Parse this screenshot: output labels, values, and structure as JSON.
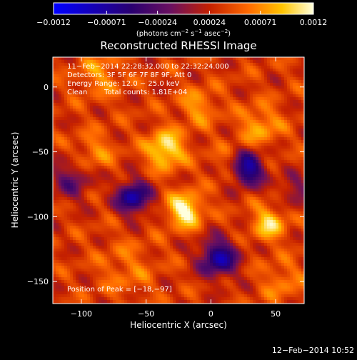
{
  "chart_data": {
    "type": "heatmap",
    "title": "Reconstructed RHESSI Image",
    "xlabel": "Heliocentric X (arcsec)",
    "ylabel": "Heliocentric Y (arcsec)",
    "xlim": [
      -122,
      72
    ],
    "ylim": [
      -167,
      23
    ],
    "x_ticks": [
      -100,
      -50,
      0,
      50
    ],
    "x_tick_labels": [
      "−100",
      "−50",
      "0",
      "50"
    ],
    "y_ticks": [
      0,
      -50,
      -100,
      -150
    ],
    "y_tick_labels": [
      "0",
      "−50",
      "−100",
      "−150"
    ],
    "colorbar": {
      "range": [
        -0.0012,
        0.0012
      ],
      "ticks": [
        -0.0012,
        -0.00071,
        -0.00024,
        0.00024,
        0.00071,
        0.0012
      ],
      "tick_labels": [
        "−0.0012",
        "−0.00071",
        "−0.00024",
        "0.00024",
        "0.00071",
        "0.0012"
      ],
      "unit_label_parts": [
        "(photons cm",
        "−2",
        " s",
        "−1",
        " asec",
        "−2",
        ")"
      ]
    },
    "info_lines": [
      "11−Feb−2014 22:28:32.000 to 22:32:24.000",
      "Detectors: 3F 5F 6F 7F 8F 9F, Att 0",
      "Energy Range: 12.0 − 25.0 keV"
    ],
    "info_clean": "Clean",
    "info_counts": "Total counts: 1.81E+04",
    "peak_label": "Position of Peak = [−18,−97]",
    "timestamp": "12−Feb−2014 10:52",
    "background_level": 0.00035,
    "sources": [
      {
        "x": -20,
        "y": -95,
        "amplitude": 0.0009,
        "sigma": 9
      },
      {
        "x": -35,
        "y": -48,
        "amplitude": 0.0008,
        "sigma": 10
      },
      {
        "x": 45,
        "y": -105,
        "amplitude": 0.00065,
        "sigma": 9
      },
      {
        "x": -10,
        "y": -15,
        "amplitude": 0.0004,
        "sigma": 10
      },
      {
        "x": 38,
        "y": -30,
        "amplitude": 0.00045,
        "sigma": 11
      },
      {
        "x": -90,
        "y": -50,
        "amplitude": 0.00035,
        "sigma": 10
      },
      {
        "x": -85,
        "y": 10,
        "amplitude": 0.00035,
        "sigma": 12
      },
      {
        "x": -65,
        "y": -140,
        "amplitude": 0.00025,
        "sigma": 15
      },
      {
        "x": 55,
        "y": -150,
        "amplitude": 0.0003,
        "sigma": 11
      },
      {
        "x": 15,
        "y": -60,
        "amplitude": 0.00025,
        "sigma": 10
      },
      {
        "x": -60,
        "y": -85,
        "amplitude": -0.0011,
        "sigma": 9
      },
      {
        "x": 28,
        "y": -63,
        "amplitude": -0.0012,
        "sigma": 9
      },
      {
        "x": 6,
        "y": -132,
        "amplitude": -0.0011,
        "sigma": 10
      },
      {
        "x": -108,
        "y": -72,
        "amplitude": -0.0005,
        "sigma": 11
      },
      {
        "x": 65,
        "y": -80,
        "amplitude": -0.0004,
        "sigma": 9
      }
    ]
  }
}
